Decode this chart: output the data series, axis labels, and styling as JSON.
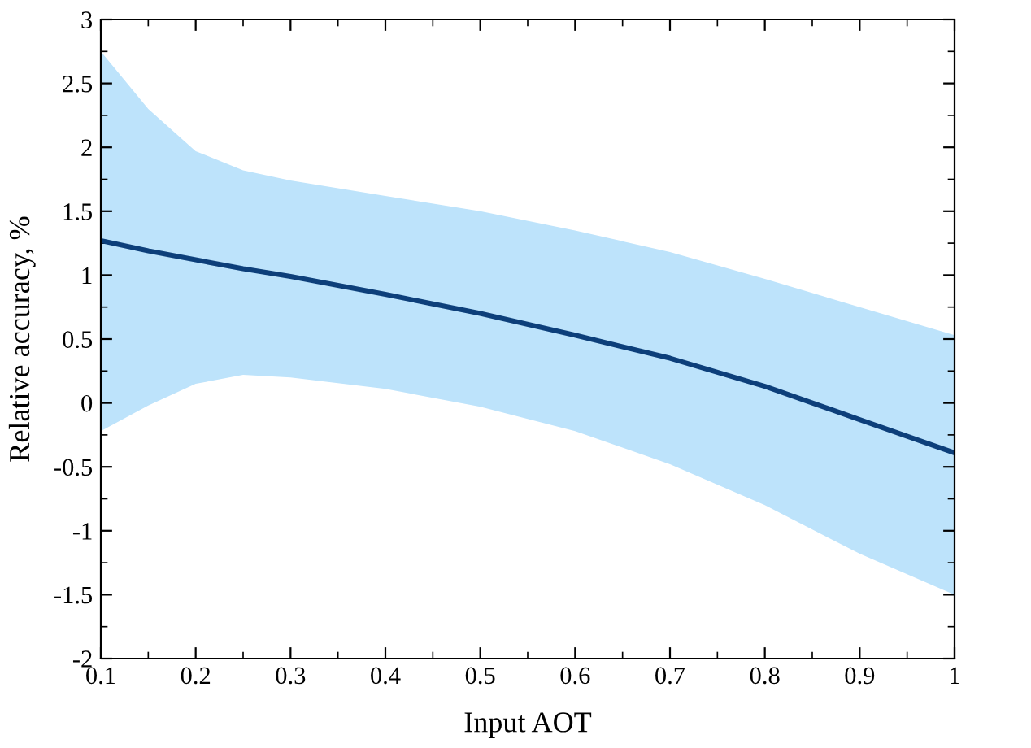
{
  "chart_data": {
    "type": "line",
    "xlabel": "Input AOT",
    "ylabel": "Relative accuracy, %",
    "x": [
      0.1,
      0.15,
      0.2,
      0.25,
      0.3,
      0.4,
      0.5,
      0.6,
      0.7,
      0.8,
      0.9,
      1.0
    ],
    "series": [
      {
        "color": "#0d3f7a",
        "values": [
          1.27,
          1.19,
          1.12,
          1.05,
          0.99,
          0.85,
          0.7,
          0.53,
          0.35,
          0.13,
          -0.13,
          -0.39
        ],
        "lower": [
          -0.22,
          -0.02,
          0.15,
          0.22,
          0.2,
          0.11,
          -0.03,
          -0.22,
          -0.48,
          -0.8,
          -1.18,
          -1.5
        ],
        "upper": [
          2.75,
          2.3,
          1.97,
          1.82,
          1.74,
          1.62,
          1.5,
          1.35,
          1.18,
          0.97,
          0.75,
          0.53
        ]
      }
    ],
    "xlim": [
      0.1,
      1
    ],
    "ylim": [
      -2,
      3
    ],
    "xticks": [
      0.1,
      0.2,
      0.3,
      0.4,
      0.5,
      0.6,
      0.7,
      0.8,
      0.9,
      1
    ],
    "yticks": [
      {
        "value": -2,
        "label": "-2"
      },
      {
        "value": -1.5,
        "label": "-1.5"
      },
      {
        "value": -1,
        "label": "-1"
      },
      {
        "value": -0.5,
        "label": "-0.5"
      },
      0,
      0.5,
      1,
      1.5,
      2,
      2.5,
      3
    ],
    "grid": false,
    "legend": false,
    "marker": "none",
    "line_style": "solid"
  }
}
